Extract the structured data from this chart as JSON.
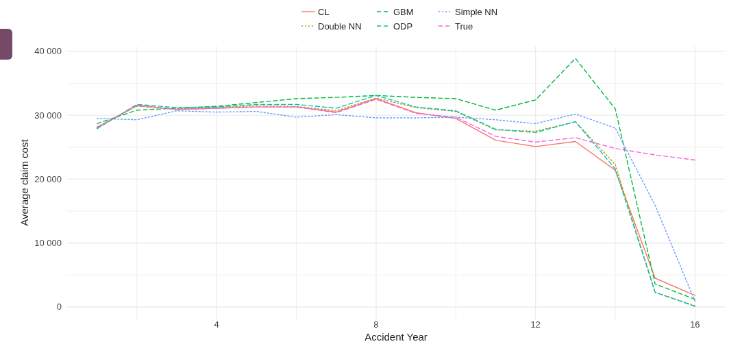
{
  "chart_data": {
    "type": "line",
    "xlabel": "Accident Year",
    "ylabel": "Average claim cost",
    "x": [
      1,
      2,
      3,
      4,
      5,
      6,
      7,
      8,
      9,
      10,
      11,
      12,
      13,
      14,
      15,
      16
    ],
    "xlim": [
      0.25,
      16.75
    ],
    "xticks": [
      {
        "value": 2,
        "label": null
      },
      4,
      {
        "value": 6,
        "label": null
      },
      8,
      {
        "value": 10,
        "label": null
      },
      12,
      {
        "value": 14,
        "label": null
      },
      16
    ],
    "ylim": [
      -1900,
      40800
    ],
    "yticks": [
      {
        "value": 0,
        "label": "0"
      },
      {
        "value": 5000,
        "label": null
      },
      {
        "value": 10000,
        "label": "10 000"
      },
      {
        "value": 15000,
        "label": null
      },
      {
        "value": 20000,
        "label": "20 000"
      },
      {
        "value": 25000,
        "label": null
      },
      {
        "value": 30000,
        "label": "30 000"
      },
      {
        "value": 35000,
        "label": null
      },
      {
        "value": 40000,
        "label": "40 000"
      }
    ],
    "grid": true,
    "legend": "top",
    "series": [
      {
        "name": "CL",
        "color": "#f8766d",
        "line_style": "solid",
        "values": [
          28000,
          31600,
          30900,
          31100,
          31300,
          31300,
          30500,
          32600,
          30400,
          29500,
          26100,
          25100,
          25900,
          21400,
          4500,
          1800
        ]
      },
      {
        "name": "Double NN",
        "color": "#b79f00",
        "line_style": "dotted",
        "values": [
          28200,
          31400,
          31000,
          31200,
          31500,
          31400,
          30700,
          32700,
          31200,
          30600,
          27700,
          27500,
          29000,
          22300,
          2300,
          200
        ]
      },
      {
        "name": "GBM",
        "color": "#00ba38",
        "line_style": "dashed",
        "values": [
          28700,
          30800,
          31100,
          31400,
          32000,
          32600,
          32800,
          33100,
          32800,
          32600,
          30800,
          32400,
          38900,
          31000,
          3600,
          1200
        ]
      },
      {
        "name": "ODP",
        "color": "#00bfc4",
        "line_style": "dashed",
        "values": [
          27900,
          31700,
          31200,
          31300,
          31700,
          31700,
          31100,
          33100,
          31300,
          30700,
          27800,
          27300,
          29000,
          21600,
          2300,
          100
        ]
      },
      {
        "name": "Simple NN",
        "color": "#619cff",
        "line_style": "dotted",
        "values": [
          29500,
          29300,
          30700,
          30500,
          30600,
          29700,
          30100,
          29600,
          29600,
          29700,
          29300,
          28700,
          30200,
          28000,
          15900,
          900
        ]
      },
      {
        "name": "True",
        "color": "#f564e3",
        "line_style": "dashed",
        "values": [
          28100,
          31500,
          30900,
          31100,
          31300,
          31300,
          30400,
          32500,
          30300,
          29700,
          26700,
          25800,
          26500,
          24800,
          23800,
          23000
        ]
      }
    ]
  }
}
